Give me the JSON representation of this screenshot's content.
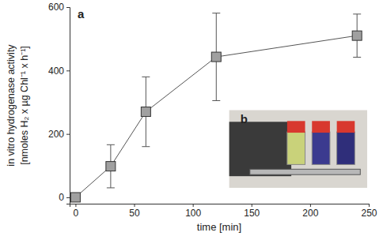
{
  "chart_data": {
    "type": "line",
    "xlabel": "time [min]",
    "ylabel": [
      "in vitro hydrogenase activity",
      "[nmoles H₂ x µg Chl⁻¹ x h⁻¹]"
    ],
    "annotations": [
      "a",
      "b"
    ],
    "x": [
      0,
      30,
      60,
      120,
      240
    ],
    "series": [
      {
        "name": "hydrogenase activity",
        "color": "#a0a0a0",
        "marker": "square",
        "values": [
          0,
          98,
          270,
          443,
          510
        ],
        "errors": [
          0,
          68,
          110,
          138,
          68
        ]
      }
    ],
    "xlim": [
      -5,
      250
    ],
    "xticks": [
      0,
      50,
      100,
      150,
      200,
      250
    ],
    "ylim": [
      -20,
      600
    ],
    "yticks": [
      0,
      200,
      400,
      600
    ],
    "grid": false
  }
}
